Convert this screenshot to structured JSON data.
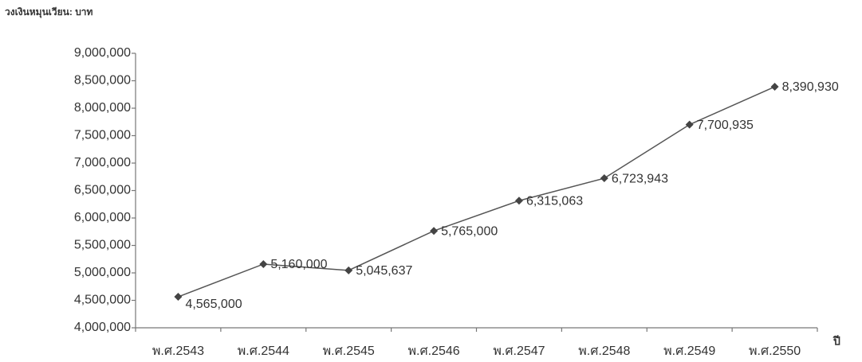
{
  "chart_data": {
    "type": "line",
    "y_axis_label": "วงเงินหมุนเวียน: บาท",
    "x_axis_label": "ปี",
    "categories": [
      "พ.ศ.2543",
      "พ.ศ.2544",
      "พ.ศ.2545",
      "พ.ศ.2546",
      "พ.ศ.2547",
      "พ.ศ.2548",
      "พ.ศ.2549",
      "พ.ศ.2550"
    ],
    "series": [
      {
        "color": "#555555",
        "values": [
          4565000,
          5160000,
          5045637,
          5765000,
          6315063,
          6723943,
          7700935,
          8390930
        ],
        "value_labels": [
          "4,565,000",
          "5,160,000",
          "5,045,637",
          "5,765,000",
          "6,315,063",
          "6,723,943",
          "7,700,935",
          "8,390,930"
        ]
      }
    ],
    "ylim": [
      4000000,
      9000000
    ],
    "yticks": [
      {
        "value": 4000000,
        "label": "4,000,000"
      },
      {
        "value": 4500000,
        "label": "4,500,000"
      },
      {
        "value": 5000000,
        "label": "5,000,000"
      },
      {
        "value": 5500000,
        "label": "5,500,000"
      },
      {
        "value": 6000000,
        "label": "6,000,000"
      },
      {
        "value": 6500000,
        "label": "6,500,000"
      },
      {
        "value": 7000000,
        "label": "7,000,000"
      },
      {
        "value": 7500000,
        "label": "7,500,000"
      },
      {
        "value": 8000000,
        "label": "8,000,000"
      },
      {
        "value": 8500000,
        "label": "8,500,000"
      },
      {
        "value": 9000000,
        "label": "9,000,000"
      }
    ],
    "grid": false
  }
}
